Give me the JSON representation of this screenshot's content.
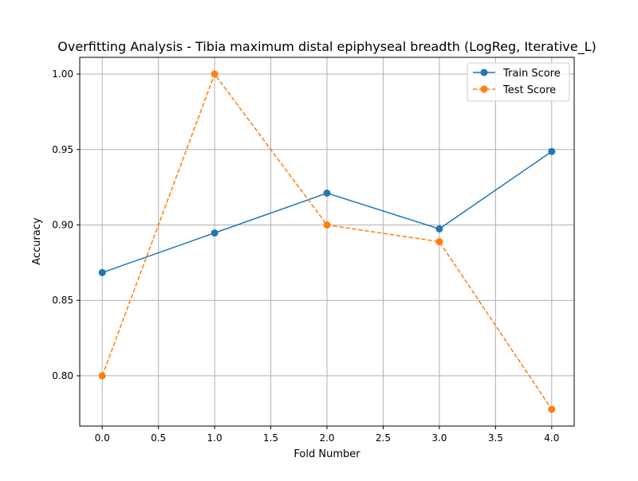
{
  "chart_data": {
    "type": "line",
    "title": "Overfitting Analysis - Tibia maximum distal epiphyseal breadth (LogReg, Iterative_L)",
    "xlabel": "Fold Number",
    "ylabel": "Accuracy",
    "xlim": [
      -0.2,
      4.2
    ],
    "ylim": [
      0.7667,
      1.0111
    ],
    "x_ticks": [
      0.0,
      0.5,
      1.0,
      1.5,
      2.0,
      2.5,
      3.0,
      3.5,
      4.0
    ],
    "x_tick_labels": [
      "0.0",
      "0.5",
      "1.0",
      "1.5",
      "2.0",
      "2.5",
      "3.0",
      "3.5",
      "4.0"
    ],
    "y_ticks": [
      0.8,
      0.85,
      0.9,
      0.95,
      1.0
    ],
    "y_tick_labels": [
      "0.80",
      "0.85",
      "0.90",
      "0.95",
      "1.00"
    ],
    "grid": true,
    "legend_position": "top-right",
    "x": [
      0,
      1,
      2,
      3,
      4
    ],
    "series": [
      {
        "name": "Train Score",
        "values": [
          0.8684,
          0.8947,
          0.9211,
          0.8974,
          0.9487
        ],
        "color": "#1f77b4",
        "line_style": "solid",
        "marker": "circle"
      },
      {
        "name": "Test Score",
        "values": [
          0.8,
          1.0,
          0.9,
          0.8889,
          0.7778
        ],
        "color": "#ff7f0e",
        "line_style": "dashed",
        "marker": "circle"
      }
    ]
  }
}
